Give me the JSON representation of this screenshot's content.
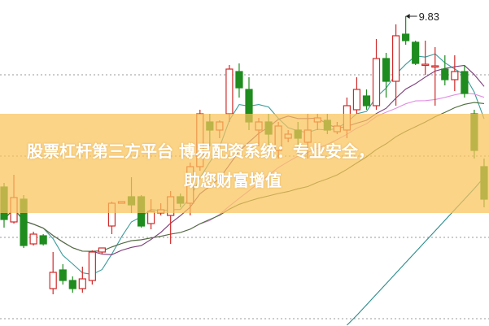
{
  "chart_data": {
    "type": "candlestick",
    "title": "",
    "grid": "horizontal dotted",
    "ylim": [
      6.03,
      10.03
    ],
    "gridlines": [
      9.11,
      8.11,
      7.11,
      6.11
    ],
    "colors": {
      "up": "#d02a2a",
      "down": "#1e8c1e",
      "ma5": "#3a9c9c",
      "ma10": "#7a3a7a",
      "ma20": "#e28ee2",
      "ma30": "#4a6e3a",
      "ma60": "#2a8c8c",
      "banner": "#fac45a"
    },
    "max_label": "9.83",
    "candles": [
      [
        7.73,
        7.33,
        7.78,
        7.23
      ],
      [
        7.3,
        7.6,
        7.88,
        7.28
      ],
      [
        7.58,
        7.01,
        7.63,
        6.98
      ],
      [
        7.03,
        7.15,
        7.18,
        7.01
      ],
      [
        7.13,
        7.03,
        7.15,
        7.01
      ],
      [
        6.48,
        6.68,
        6.93,
        6.41
      ],
      [
        6.71,
        6.58,
        6.78,
        6.53
      ],
      [
        6.58,
        6.48,
        6.63,
        6.43
      ],
      [
        6.48,
        6.6,
        6.75,
        6.43
      ],
      [
        6.58,
        6.93,
        6.95,
        6.53
      ],
      [
        6.93,
        6.98,
        6.98,
        6.91
      ],
      [
        7.25,
        7.53,
        7.55,
        7.15
      ],
      [
        7.53,
        7.55,
        7.55,
        7.53
      ],
      [
        7.61,
        7.51,
        7.85,
        7.41
      ],
      [
        7.61,
        7.25,
        7.63,
        7.23
      ],
      [
        7.28,
        7.43,
        7.58,
        7.21
      ],
      [
        7.41,
        7.45,
        7.53,
        7.38
      ],
      [
        7.38,
        7.61,
        7.68,
        7.03
      ],
      [
        7.61,
        7.53,
        7.65,
        7.48
      ],
      [
        7.53,
        7.98,
        8.03,
        7.38
      ],
      [
        7.98,
        8.63,
        8.68,
        7.93
      ],
      [
        8.53,
        8.43,
        8.63,
        8.23
      ],
      [
        8.43,
        8.53,
        8.55,
        8.33
      ],
      [
        8.63,
        9.18,
        9.23,
        8.53
      ],
      [
        9.15,
        8.95,
        9.25,
        8.83
      ],
      [
        8.93,
        8.53,
        9.08,
        8.43
      ],
      [
        8.43,
        8.53,
        8.58,
        8.23
      ],
      [
        8.53,
        8.38,
        8.63,
        8.13
      ],
      [
        8.18,
        8.48,
        8.53,
        8.08
      ],
      [
        8.33,
        8.38,
        8.43,
        8.28
      ],
      [
        8.43,
        8.33,
        8.53,
        8.13
      ],
      [
        8.28,
        8.43,
        8.63,
        8.08
      ],
      [
        8.53,
        8.58,
        8.63,
        8.43
      ],
      [
        8.55,
        8.43,
        8.63,
        8.38
      ],
      [
        8.41,
        8.48,
        8.53,
        8.38
      ],
      [
        8.43,
        8.73,
        8.83,
        8.33
      ],
      [
        8.68,
        8.93,
        9.08,
        8.63
      ],
      [
        8.85,
        8.73,
        8.93,
        8.68
      ],
      [
        8.73,
        9.31,
        9.55,
        8.68
      ],
      [
        9.31,
        9.03,
        9.38,
        8.83
      ],
      [
        9.03,
        9.59,
        9.73,
        8.73
      ],
      [
        9.61,
        9.53,
        9.83,
        9.48
      ],
      [
        9.51,
        9.25,
        9.53,
        9.23
      ],
      [
        9.23,
        9.24,
        9.53,
        9.11
      ],
      [
        9.21,
        9.22,
        9.45,
        8.73
      ],
      [
        9.18,
        9.05,
        9.35,
        8.98
      ],
      [
        9.05,
        9.15,
        9.35,
        8.91
      ],
      [
        9.15,
        8.88,
        9.23,
        8.83
      ],
      [
        8.63,
        8.18,
        8.68,
        8.08
      ],
      [
        7.98,
        7.58,
        8.08,
        7.48
      ]
    ],
    "candle_fields": [
      "open",
      "close",
      "high",
      "low"
    ],
    "moving_averages": [
      5,
      10,
      20,
      30
    ],
    "ma60": {
      "start_index": 35,
      "values": [
        6.03,
        6.15,
        6.28,
        6.41,
        6.54,
        6.67,
        6.8,
        6.93,
        7.06,
        7.19,
        7.32,
        7.45,
        7.58,
        7.71,
        7.85
      ]
    }
  },
  "banner": {
    "line1": "股票杠杆第三方平台 博易配资系统：专业安全，",
    "line2": "助您财富增值"
  }
}
